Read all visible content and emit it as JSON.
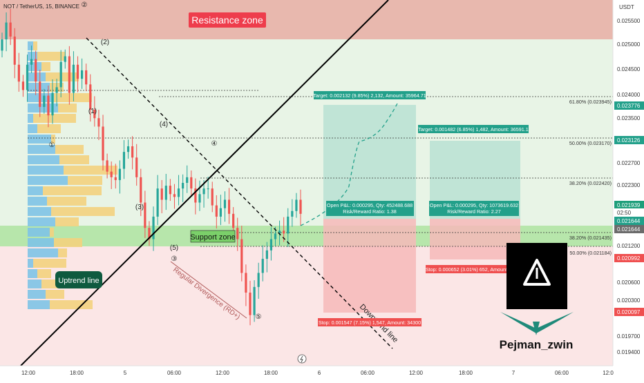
{
  "header": {
    "symbol": "NOT / TetherUS, 15, BINANCE"
  },
  "currency": "USDT",
  "colors": {
    "up": "#26a69a",
    "down": "#ef5350",
    "resistance_zone": "#e8b8ae",
    "support_zone": "#b4e8a8",
    "green_box": "#b8e0d2",
    "red_box": "#f4b8b8",
    "target_label_bg": "#22a08a",
    "stop_label_bg": "#ef4f4f",
    "trendline": "#000000",
    "volume_blue": "#7ec3e6",
    "volume_yellow": "#f3d27e"
  },
  "labels": {
    "resistance_zone": "Resistance zone",
    "support_zone": "Support zone",
    "uptrend_line": "Uptrend line",
    "downtrend_line": "Downtrend line",
    "divergence": "Regular Divergence (RD+)",
    "author": "Pejman_zwin"
  },
  "positions": [
    {
      "target": "Target: 0.002132 (9.85%) 2,132, Amount: 35964.71",
      "open": "Open P&L: 0.000295, Qty: 452488.688",
      "ratio": "Risk/Reward Ratio: 1.38",
      "stop": "Stop: 0.001547 (7.15%) 1,547, Amount: 34300"
    },
    {
      "target": "Target: 0.001482 (6.85%) 1,482, Amount: 36591.1",
      "open": "Open P&L: 0.000295, Qty: 1073619.632",
      "ratio": "Risk/Reward Ratio: 2.27",
      "stop": "Stop: 0.000652 (3.01%) 652, Amount: 34300"
    }
  ],
  "fib_levels": [
    {
      "label": "61.80% (0.023945)",
      "value": 0.023945
    },
    {
      "label": "50.00% (0.023170)",
      "value": 0.02317
    },
    {
      "label": "38.20% (0.022420)",
      "value": 0.02242
    },
    {
      "label": "38.20% (0.021435)",
      "value": 0.021435
    },
    {
      "label": "50.00% (0.021184)",
      "value": 0.021184
    }
  ],
  "wave_labels": [
    "①",
    "②",
    "(2)",
    "(1)",
    "(4)",
    "④",
    "(3)",
    "(5)",
    "③",
    "⑤"
  ],
  "chart_data": {
    "type": "candlestick",
    "title": "NOT / TetherUS, 15, BINANCE",
    "x_ticks": [
      "12:00",
      "18:00",
      "5",
      "06:00",
      "12:00",
      "18:00",
      "6",
      "06:00",
      "12:00",
      "18:00",
      "7",
      "06:00",
      "12:0"
    ],
    "y_ticks": [
      "0.025500",
      "0.025000",
      "0.024500",
      "0.024000",
      "0.023500",
      "0.022700",
      "0.022300",
      "0.021200",
      "0.020600",
      "0.020300",
      "0.019700",
      "0.019400"
    ],
    "price_badges": [
      {
        "value": "0.023776",
        "kind": "target"
      },
      {
        "value": "0.023126",
        "kind": "target"
      },
      {
        "value": "0.021939",
        "kind": "last"
      },
      {
        "value": "02:50",
        "kind": "countdown"
      },
      {
        "value": "0.021644",
        "kind": "entry"
      },
      {
        "value": "0.021644",
        "kind": "entry_gray"
      },
      {
        "value": "0.020992",
        "kind": "stop"
      },
      {
        "value": "0.020097",
        "kind": "stop"
      }
    ],
    "ylim": [
      0.01925,
      0.02575
    ],
    "resistance_zone": [
      0.0251,
      0.02575
    ],
    "support_zone": [
      0.02128,
      0.02158
    ],
    "last_price": 0.021939,
    "entry_price": 0.021644,
    "closes": [
      0.02505,
      0.02535,
      0.0251,
      0.0246,
      0.0243,
      0.02415,
      0.0246,
      0.0247,
      0.0243,
      0.02385,
      0.02405,
      0.0237,
      0.0241,
      0.0242,
      0.02465,
      0.02475,
      0.0241,
      0.0246,
      0.02435,
      0.0245,
      0.02425,
      0.0238,
      0.02365,
      0.0235,
      0.0229,
      0.0227,
      0.0226,
      0.02255,
      0.02275,
      0.02305,
      0.02315,
      0.02295,
      0.0226,
      0.02215,
      0.0217,
      0.0215,
      0.0219,
      0.0224,
      0.0222,
      0.02245,
      0.0223,
      0.02225,
      0.0224,
      0.0225,
      0.0226,
      0.0224,
      0.02215,
      0.0223,
      0.0224,
      0.0224,
      0.0221,
      0.0219,
      0.02205,
      0.0222,
      0.02195,
      0.0217,
      0.0215,
      0.0209,
      0.02055,
      0.02015,
      0.02065,
      0.0209,
      0.02115,
      0.0213,
      0.0215,
      0.0216,
      0.02165,
      0.0216,
      0.0219,
      0.022,
      0.0222,
      0.02195
    ]
  }
}
